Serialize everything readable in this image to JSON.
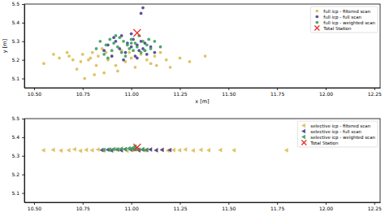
{
  "chart_data": [
    {
      "type": "scatter",
      "x_label": "x [m]",
      "y_label": "y [m]",
      "xlim": [
        10.45,
        12.28
      ],
      "ylim": [
        5.05,
        5.5
      ],
      "xticks": [
        {
          "value": 10.5,
          "label": "10.50"
        },
        {
          "value": 10.75,
          "label": "10.75"
        },
        {
          "value": 11,
          "label": "11.00"
        },
        {
          "value": 11.25,
          "label": "11.25"
        },
        {
          "value": 11.5,
          "label": "11.50"
        },
        {
          "value": 11.75,
          "label": "11.75"
        },
        {
          "value": 12,
          "label": "12.00"
        },
        {
          "value": 12.25,
          "label": "12.25"
        }
      ],
      "yticks": [
        5.1,
        5.2,
        5.3,
        5.4,
        5.5
      ],
      "legend": "upper right",
      "series": [
        {
          "name": "full icp - filtered scan",
          "color": "#dcbd55",
          "marker": "circle",
          "x": [
            10.55,
            10.6,
            10.63,
            10.67,
            10.7,
            10.72,
            10.75,
            10.76,
            10.78,
            10.8,
            10.82,
            10.83,
            10.85,
            10.86,
            10.88,
            10.9,
            10.92,
            10.95,
            10.97,
            11.0,
            11.02,
            11.05,
            11.08,
            11.1,
            11.12,
            11.15,
            11.18,
            11.2,
            11.25,
            11.3,
            11.38,
            10.74,
            10.79,
            10.87,
            10.93,
            11.07,
            11.13,
            10.68,
            10.81,
            10.99
          ],
          "y": [
            5.18,
            5.23,
            5.21,
            5.24,
            5.2,
            5.15,
            5.23,
            5.1,
            5.2,
            5.24,
            5.17,
            5.22,
            5.26,
            5.13,
            5.2,
            5.22,
            5.17,
            5.25,
            5.19,
            5.21,
            5.16,
            5.23,
            5.2,
            5.18,
            5.22,
            5.24,
            5.2,
            5.16,
            5.21,
            5.19,
            5.22,
            5.19,
            5.21,
            5.24,
            5.14,
            5.25,
            5.17,
            5.22,
            5.12,
            5.24
          ]
        },
        {
          "name": "full icp - full scan",
          "color": "#4b3d8f",
          "marker": "circle",
          "x": [
            10.86,
            10.88,
            10.9,
            10.92,
            10.94,
            10.95,
            10.97,
            10.98,
            11.0,
            11.01,
            11.02,
            11.03,
            11.04,
            11.05,
            11.06,
            11.08,
            11.1,
            11.12,
            10.91,
            10.96,
            11.0,
            11.03,
            11.07,
            11.05,
            11.06
          ],
          "y": [
            5.25,
            5.28,
            5.22,
            5.3,
            5.26,
            5.33,
            5.24,
            5.29,
            5.27,
            5.31,
            5.22,
            5.28,
            5.25,
            5.3,
            5.26,
            5.23,
            5.27,
            5.24,
            5.32,
            5.2,
            5.34,
            5.21,
            5.29,
            5.45,
            5.48
          ]
        },
        {
          "name": "full icp - weighted scan",
          "color": "#3a9f5c",
          "marker": "circle",
          "x": [
            10.82,
            10.84,
            10.86,
            10.87,
            10.89,
            10.9,
            10.91,
            10.93,
            10.94,
            10.95,
            10.96,
            10.98,
            10.99,
            11.0,
            11.01,
            11.02,
            11.03,
            11.04,
            11.06,
            11.07,
            11.08,
            11.1,
            11.12,
            11.15,
            10.88,
            10.92,
            10.97,
            11.0,
            11.05,
            11.09
          ],
          "y": [
            5.26,
            5.3,
            5.23,
            5.28,
            5.31,
            5.25,
            5.29,
            5.27,
            5.32,
            5.24,
            5.3,
            5.28,
            5.26,
            5.31,
            5.25,
            5.29,
            5.27,
            5.33,
            5.3,
            5.25,
            5.28,
            5.26,
            5.3,
            5.27,
            5.21,
            5.33,
            5.22,
            5.29,
            5.24,
            5.31
          ]
        },
        {
          "name": "Total Station",
          "color": "#e8312f",
          "marker": "x",
          "x": [
            11.03
          ],
          "y": [
            5.345
          ]
        }
      ]
    },
    {
      "type": "scatter",
      "xlim": [
        10.45,
        12.28
      ],
      "ylim": [
        5.05,
        5.5
      ],
      "xticks": [
        {
          "value": 10.5,
          "label": "10.50"
        },
        {
          "value": 10.75,
          "label": "10.75"
        },
        {
          "value": 11,
          "label": "11.00"
        },
        {
          "value": 11.25,
          "label": "11.25"
        },
        {
          "value": 11.5,
          "label": "11.50"
        },
        {
          "value": 11.75,
          "label": "11.75"
        },
        {
          "value": 12,
          "label": "12.00"
        },
        {
          "value": 12.25,
          "label": "12.25"
        }
      ],
      "yticks": [
        5.1,
        5.2,
        5.3,
        5.4,
        5.5
      ],
      "legend": "upper right",
      "series": [
        {
          "name": "selective icp - filtered scan",
          "color": "#dcbd55",
          "marker": "triangle-left",
          "x": [
            10.55,
            10.6,
            10.64,
            10.68,
            10.71,
            10.74,
            10.77,
            10.8,
            10.83,
            10.86,
            10.89,
            10.92,
            10.95,
            10.98,
            11.01,
            11.04,
            11.07,
            11.1,
            11.13,
            11.16,
            11.19,
            11.22,
            11.25,
            11.28,
            11.32,
            11.36,
            11.4,
            11.46,
            11.53,
            11.8
          ],
          "y": [
            5.33,
            5.332,
            5.328,
            5.33,
            5.335,
            5.327,
            5.332,
            5.33,
            5.334,
            5.328,
            5.331,
            5.336,
            5.33,
            5.327,
            5.333,
            5.33,
            5.329,
            5.334,
            5.33,
            5.332,
            5.328,
            5.331,
            5.33,
            5.334,
            5.329,
            5.332,
            5.33,
            5.331,
            5.33,
            5.33
          ]
        },
        {
          "name": "selective icp - full scan",
          "color": "#4b3d8f",
          "marker": "triangle-left",
          "x": [
            10.85,
            10.88,
            10.9,
            10.93,
            10.95,
            10.97,
            11.0,
            11.02,
            11.04,
            11.06,
            11.08,
            11.1,
            11.13,
            11.16,
            11.2
          ],
          "y": [
            5.331,
            5.333,
            5.329,
            5.334,
            5.33,
            5.336,
            5.332,
            5.335,
            5.33,
            5.333,
            5.331,
            5.334,
            5.33,
            5.332,
            5.331
          ]
        },
        {
          "name": "selective icp - weighted scan",
          "color": "#3a9f5c",
          "marker": "triangle-left",
          "x": [
            10.86,
            10.89,
            10.91,
            10.93,
            10.95,
            10.97,
            10.99,
            11.0,
            11.01,
            11.02,
            11.03,
            11.04,
            11.06,
            11.08,
            11.02
          ],
          "y": [
            5.332,
            5.334,
            5.336,
            5.333,
            5.338,
            5.335,
            5.34,
            5.337,
            5.342,
            5.336,
            5.339,
            5.334,
            5.336,
            5.333,
            5.35
          ]
        },
        {
          "name": "Total Station",
          "color": "#e8312f",
          "marker": "x",
          "x": [
            11.03
          ],
          "y": [
            5.345
          ]
        }
      ]
    }
  ]
}
